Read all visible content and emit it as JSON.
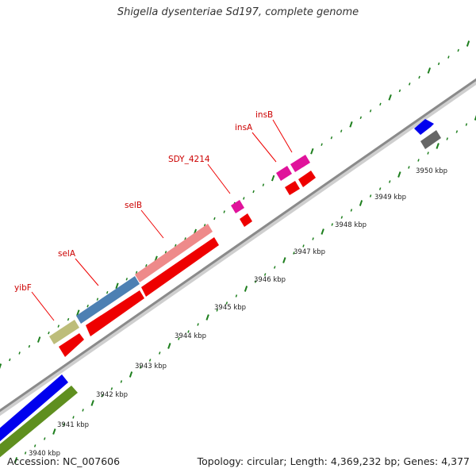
{
  "title": "Shigella dysenteriae Sd197, complete genome",
  "footer": {
    "accession": "Accession: NC_007606",
    "summary": "Topology: circular; Length: 4,369,232 bp; Genes: 4,377"
  },
  "scale_labels": [
    "3940 kbp",
    "3941 kbp",
    "3942 kbp",
    "3943 kbp",
    "3944 kbp",
    "3945 kbp",
    "3946 kbp",
    "3947 kbp",
    "3948 kbp",
    "3949 kbp",
    "3950 kbp"
  ],
  "gene_labels": [
    "yibF",
    "selA",
    "selB",
    "SDY_4214",
    "insA",
    "insB"
  ],
  "colors": {
    "backbone": "#8a8a8a",
    "cds_red": "#ee0000",
    "yibF": "#bdbd7a",
    "selA": "#4d80b3",
    "selB": "#ee8a8a",
    "insertion": "#e0139b",
    "blue_band": "#0000ee",
    "green_band": "#5f8f1f",
    "gray_feature": "#666666",
    "tick_green": "#1e7f1e",
    "label_line": "#ee0000"
  }
}
